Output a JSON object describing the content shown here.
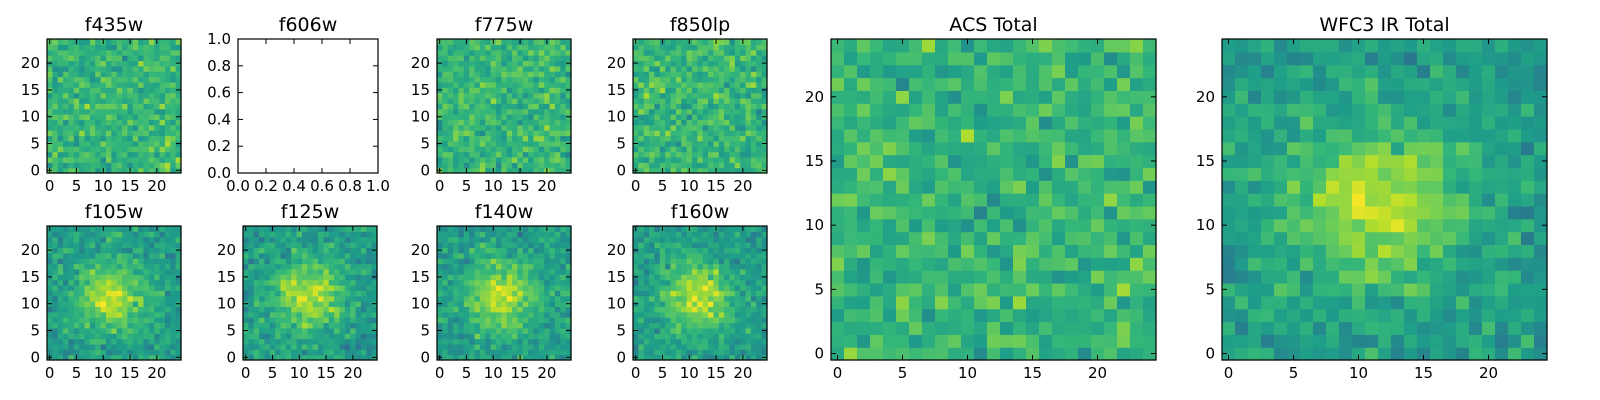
{
  "chart_data": [
    {
      "type": "heatmap",
      "title": "f435w",
      "data_range": [
        0,
        24
      ],
      "xticks": [
        0,
        5,
        10,
        15,
        20
      ],
      "yticks": [
        0,
        5,
        10,
        15,
        20
      ],
      "texture": "noise",
      "colormap": "viridis"
    },
    {
      "type": "empty",
      "title": "f606w",
      "xlim": [
        0,
        1
      ],
      "ylim": [
        0,
        1
      ],
      "xticks": [
        "0.0",
        "0.2",
        "0.4",
        "0.6",
        "0.8",
        "1.0"
      ],
      "yticks": [
        "0.0",
        "0.2",
        "0.4",
        "0.6",
        "0.8",
        "1.0"
      ]
    },
    {
      "type": "heatmap",
      "title": "f775w",
      "data_range": [
        0,
        24
      ],
      "xticks": [
        0,
        5,
        10,
        15,
        20
      ],
      "yticks": [
        0,
        5,
        10,
        15,
        20
      ],
      "texture": "noise",
      "colormap": "viridis"
    },
    {
      "type": "heatmap",
      "title": "f850lp",
      "data_range": [
        0,
        24
      ],
      "xticks": [
        0,
        5,
        10,
        15,
        20
      ],
      "yticks": [
        0,
        5,
        10,
        15,
        20
      ],
      "texture": "noise",
      "colormap": "viridis"
    },
    {
      "type": "heatmap",
      "title": "ACS Total",
      "data_range": [
        0,
        24
      ],
      "xticks": [
        0,
        5,
        10,
        15,
        20
      ],
      "yticks": [
        0,
        5,
        10,
        15,
        20
      ],
      "texture": "noise",
      "colormap": "viridis"
    },
    {
      "type": "heatmap",
      "title": "WFC3 IR Total",
      "data_range": [
        0,
        24
      ],
      "xticks": [
        0,
        5,
        10,
        15,
        20
      ],
      "yticks": [
        0,
        5,
        10,
        15,
        20
      ],
      "texture": "smooth-center-peak",
      "colormap": "viridis"
    },
    {
      "type": "heatmap",
      "title": "f105w",
      "data_range": [
        0,
        24
      ],
      "xticks": [
        0,
        5,
        10,
        15,
        20
      ],
      "yticks": [
        0,
        5,
        10,
        15,
        20
      ],
      "texture": "smooth-center-peak",
      "colormap": "viridis"
    },
    {
      "type": "heatmap",
      "title": "f125w",
      "data_range": [
        0,
        24
      ],
      "xticks": [
        0,
        5,
        10,
        15,
        20
      ],
      "yticks": [
        0,
        5,
        10,
        15,
        20
      ],
      "texture": "smooth-center-peak",
      "colormap": "viridis"
    },
    {
      "type": "heatmap",
      "title": "f140w",
      "data_range": [
        0,
        24
      ],
      "xticks": [
        0,
        5,
        10,
        15,
        20
      ],
      "yticks": [
        0,
        5,
        10,
        15,
        20
      ],
      "texture": "smooth-center-peak",
      "colormap": "viridis"
    },
    {
      "type": "heatmap",
      "title": "f160w",
      "data_range": [
        0,
        24
      ],
      "xticks": [
        0,
        5,
        10,
        15,
        20
      ],
      "yticks": [
        0,
        5,
        10,
        15,
        20
      ],
      "texture": "smooth-center-peak",
      "colormap": "viridis"
    }
  ]
}
